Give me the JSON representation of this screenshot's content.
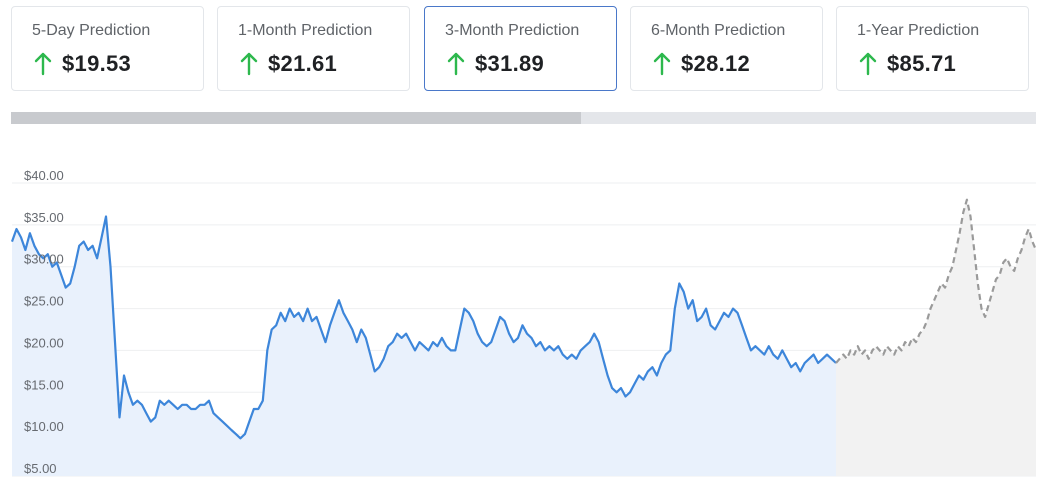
{
  "predictions": [
    {
      "label": "5-Day Prediction",
      "value": "$19.53",
      "direction": "up",
      "active": false
    },
    {
      "label": "1-Month Prediction",
      "value": "$21.61",
      "direction": "up",
      "active": false
    },
    {
      "label": "3-Month Prediction",
      "value": "$31.89",
      "direction": "up",
      "active": true
    },
    {
      "label": "6-Month Prediction",
      "value": "$28.12",
      "direction": "up",
      "active": false
    },
    {
      "label": "1-Year Prediction",
      "value": "$85.71",
      "direction": "up",
      "active": false
    }
  ],
  "colors": {
    "up_arrow": "#2db84d",
    "history_line": "#3d86da",
    "history_fill": "#e9f1fc",
    "forecast_line": "#9a9a9a",
    "forecast_fill": "#f2f2f2",
    "active_border": "#4a78c9"
  },
  "timeline_scroll": {
    "visible_fraction": 0.556
  },
  "chart_data": {
    "type": "line",
    "ylim": [
      5,
      40
    ],
    "y_tick_labels": [
      "$40.00",
      "$35.00",
      "$30.00",
      "$25.00",
      "$20.00",
      "$15.00",
      "$10.00",
      "$5.00"
    ],
    "y_tick_values": [
      40,
      35,
      30,
      25,
      20,
      15,
      10,
      5
    ],
    "grid": true,
    "series": [
      {
        "style": "solid",
        "values": [
          33.0,
          34.5,
          33.5,
          32.0,
          34.0,
          32.5,
          31.5,
          31.0,
          31.5,
          30.0,
          30.5,
          29.0,
          27.5,
          28.0,
          30.0,
          32.5,
          33.0,
          32.0,
          32.5,
          31.0,
          33.5,
          36.0,
          30.0,
          21.0,
          12.0,
          17.0,
          15.0,
          13.5,
          14.0,
          13.5,
          12.5,
          11.5,
          12.0,
          14.0,
          13.5,
          14.0,
          13.5,
          13.0,
          13.5,
          13.5,
          13.0,
          13.0,
          13.5,
          13.5,
          14.0,
          12.5,
          12.0,
          11.5,
          11.0,
          10.5,
          10.0,
          9.5,
          10.0,
          11.5,
          13.0,
          13.0,
          14.0,
          20.0,
          22.5,
          23.0,
          24.5,
          23.5,
          25.0,
          24.0,
          24.5,
          23.5,
          25.0,
          23.5,
          24.0,
          22.5,
          21.0,
          23.0,
          24.5,
          26.0,
          24.5,
          23.5,
          22.5,
          21.0,
          22.5,
          21.5,
          19.5,
          17.5,
          18.0,
          19.0,
          20.5,
          21.0,
          22.0,
          21.5,
          22.0,
          21.0,
          20.0,
          21.0,
          20.5,
          20.0,
          21.0,
          20.5,
          21.5,
          20.5,
          20.0,
          20.0,
          22.5,
          25.0,
          24.5,
          23.5,
          22.0,
          21.0,
          20.5,
          21.0,
          22.5,
          24.0,
          23.5,
          22.0,
          21.0,
          21.5,
          23.0,
          22.0,
          21.5,
          20.5,
          21.0,
          20.0,
          20.5,
          20.0,
          20.5,
          19.5,
          19.0,
          19.5,
          19.0,
          20.0,
          20.5,
          21.0,
          22.0,
          21.0,
          19.0,
          17.0,
          15.5,
          15.0,
          15.5,
          14.5,
          15.0,
          16.0,
          17.0,
          16.5,
          17.5,
          18.0,
          17.0,
          18.5,
          19.5,
          20.0,
          25.0,
          28.0,
          27.0,
          25.0,
          26.0,
          23.5,
          24.0,
          25.0,
          23.0,
          22.5,
          23.5,
          24.5,
          24.0,
          25.0,
          24.5,
          23.0,
          21.5,
          20.0,
          20.5,
          20.0,
          19.5,
          20.5,
          19.5,
          19.0,
          20.0,
          19.0,
          18.0,
          18.5,
          17.5,
          18.5,
          19.0,
          19.5,
          18.5,
          19.0,
          19.5,
          19.0,
          18.5
        ]
      },
      {
        "style": "dashed",
        "values": [
          18.5,
          19.0,
          19.5,
          19.0,
          20.0,
          19.5,
          20.5,
          19.5,
          20.0,
          19.0,
          20.0,
          20.5,
          20.0,
          19.5,
          20.5,
          20.0,
          19.5,
          20.5,
          20.0,
          21.0,
          20.5,
          21.5,
          21.0,
          22.0,
          22.5,
          23.5,
          25.0,
          26.0,
          27.0,
          28.0,
          27.5,
          29.0,
          30.0,
          32.0,
          34.0,
          36.5,
          38.0,
          36.0,
          32.0,
          28.0,
          25.0,
          24.0,
          25.5,
          27.0,
          28.5,
          29.0,
          30.5,
          31.0,
          30.0,
          29.5,
          31.0,
          32.0,
          33.5,
          34.5,
          33.0,
          32.0
        ]
      }
    ]
  }
}
